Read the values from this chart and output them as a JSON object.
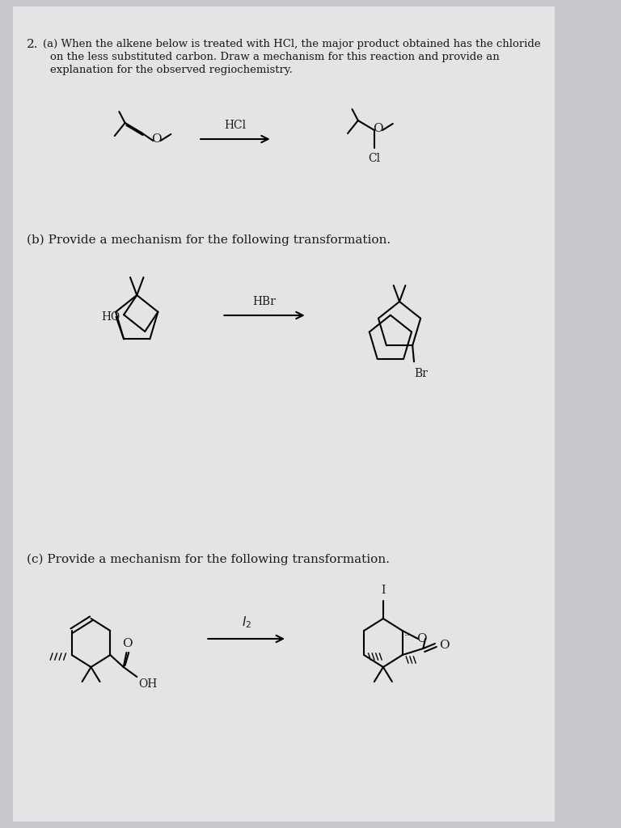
{
  "bg_color": "#c8c8cc",
  "paper_color": "#e8e8ea",
  "text_color": "#1a1a1a",
  "title_number": "2.",
  "part_a_text": "(a) When the alkene below is treated with HCl, the major product obtained has the chloride\n    on the less substituted carbon. Draw a mechanism for this reaction and provide an\n    explanation for the observed regiochemistry.",
  "part_b_text": "(b) Provide a mechanism for the following transformation.",
  "part_c_text": "(c) Provide a mechanism for the following transformation.",
  "reagent_a": "HCl",
  "reagent_b": "HBr",
  "reagent_c": "I₂"
}
